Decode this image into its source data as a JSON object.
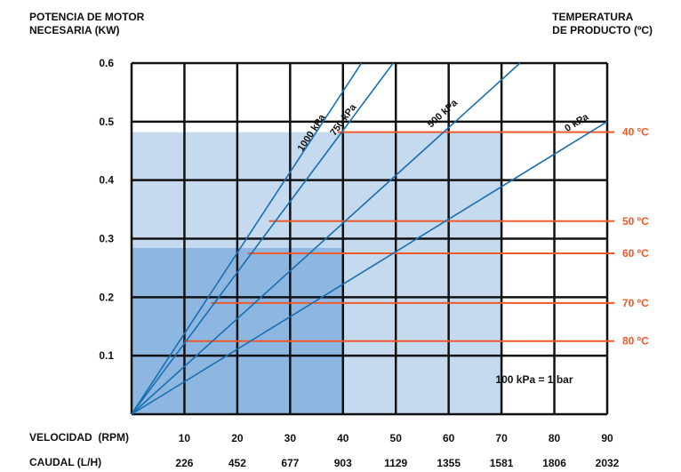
{
  "chart_data": {
    "type": "line",
    "ylabel_lines": [
      "POTENCIA DE MOTOR",
      "NECESARIA (KW)"
    ],
    "y2label_lines": [
      "TEMPERATURA",
      "DE PRODUCTO (ºC)"
    ],
    "x_row_label": "VELOCIDAD  (RPM)",
    "x2_row_label": "CAUDAL (L/H)",
    "x_range": [
      0,
      90
    ],
    "y_range": [
      0,
      0.6
    ],
    "x_ticks": [
      {
        "x": 10,
        "label": "10",
        "caudal": "226"
      },
      {
        "x": 20,
        "label": "20",
        "caudal": "452"
      },
      {
        "x": 30,
        "label": "30",
        "caudal": "677"
      },
      {
        "x": 40,
        "label": "40",
        "caudal": "903"
      },
      {
        "x": 50,
        "label": "50",
        "caudal": "1129"
      },
      {
        "x": 60,
        "label": "60",
        "caudal": "1355"
      },
      {
        "x": 70,
        "label": "70",
        "caudal": "1581"
      },
      {
        "x": 80,
        "label": "80",
        "caudal": "1806"
      },
      {
        "x": 90,
        "label": "90",
        "caudal": "2032"
      }
    ],
    "y_ticks": [
      {
        "y": 0.1,
        "label": "0.1"
      },
      {
        "y": 0.2,
        "label": "0.2"
      },
      {
        "y": 0.3,
        "label": "0.3"
      },
      {
        "y": 0.4,
        "label": "0.4"
      },
      {
        "y": 0.5,
        "label": "0.5"
      },
      {
        "y": 0.6,
        "label": "0.6"
      }
    ],
    "regions": [
      {
        "x_max": 70,
        "y_max": 0.482,
        "color": "#c5d9ef"
      },
      {
        "x_max": 40,
        "y_max": 0.284,
        "color": "#8db6e1"
      }
    ],
    "series": [
      {
        "name": "1000 kPa",
        "points": [
          [
            0,
            0
          ],
          [
            43.5,
            0.6
          ]
        ],
        "label_at": [
          34.5,
          0.478
        ]
      },
      {
        "name": "750 kPa",
        "points": [
          [
            0,
            0
          ],
          [
            49.5,
            0.6
          ]
        ],
        "label_at": [
          40.5,
          0.5
        ]
      },
      {
        "name": "500 kPa",
        "points": [
          [
            0,
            0
          ],
          [
            73.5,
            0.6
          ]
        ],
        "label_at": [
          59.2,
          0.51
        ]
      },
      {
        "name": "0 kPa",
        "points": [
          [
            0,
            0
          ],
          [
            90,
            0.5
          ]
        ],
        "label_at": [
          84.5,
          0.494
        ]
      }
    ],
    "series_color": "#1a6fb0",
    "temperature_lines": [
      {
        "label": "40 ºC",
        "y": 0.482,
        "x_start": 39
      },
      {
        "label": "50 ºC",
        "y": 0.33,
        "x_start": 26
      },
      {
        "label": "60 ºC",
        "y": 0.275,
        "x_start": 22
      },
      {
        "label": "70 ºC",
        "y": 0.19,
        "x_start": 15
      },
      {
        "label": "80 ºC",
        "y": 0.125,
        "x_start": 10
      }
    ],
    "temperature_color": "#ef5a28",
    "note": "100 kPa = 1 bar",
    "grid": true
  }
}
